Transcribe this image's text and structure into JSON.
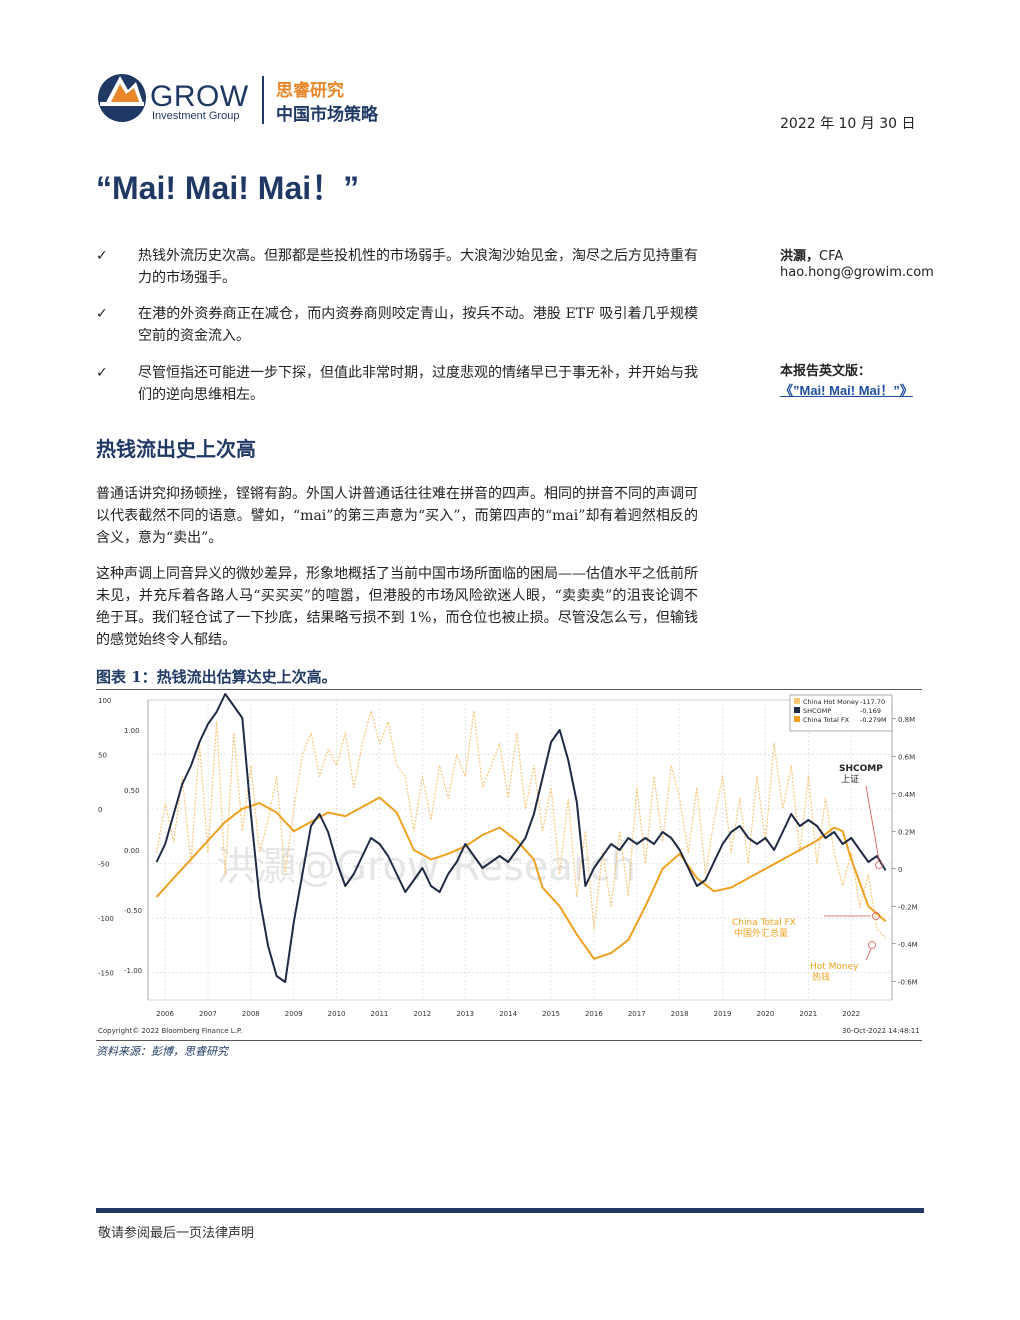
{
  "header": {
    "logo_word": "GROW",
    "logo_sub": "Investment Group",
    "brand_cn": "思睿研究",
    "brand_sub": "中国市场策略",
    "date": "2022 年 10 月 30 日"
  },
  "title": "“Mai! Mai! Mai！”",
  "bullets": [
    {
      "mark": "✓",
      "text": "热钱外流历史次高。但那都是些投机性的市场弱手。大浪淘沙始见金，淘尽之后方见持重有力的市场强手。"
    },
    {
      "mark": "✓",
      "text": "在港的外资券商正在减仓，而内资券商则咬定青山，按兵不动。港股 ETF 吸引着几乎规模空前的资金流入。"
    },
    {
      "mark": "✓",
      "text": "尽管恒指还可能进一步下探，但值此非常时期，过度悲观的情绪早已于事无补，并开始与我们的逆向思维相左。"
    }
  ],
  "author": {
    "name": "洪灝，",
    "cfa": "CFA",
    "email": "hao.hong@growim.com",
    "english_label": "本报告英文版：",
    "english_link": "《”Mai! Mai! Mai！”》"
  },
  "section_heading": "热钱流出史上次高",
  "paragraphs": [
    "普通话讲究抑扬顿挫，铿锵有韵。外国人讲普通话往往难在拼音的四声。相同的拼音不同的声调可以代表截然不同的语意。譬如，“mai”的第三声意为“买入”，而第四声的“mai”却有着迥然相反的含义，意为“卖出”。",
    "这种声调上同音异义的微妙差异，形象地概括了当前中国市场所面临的困局——估值水平之低前所未见，并充斥着各路人马“买买买”的喧嚣，但港股的市场风险欲迷人眼，“卖卖卖”的沮丧论调不绝于耳。我们轻仓试了一下抄底，结果略亏损不到 1%，而仓位也被止损。尽管没怎么亏，但输钱的感觉始终令人郁结。"
  ],
  "figure": {
    "title": "图表 1：热钱流出估算达史上次高。",
    "source": "资料来源：彭博，思睿研究",
    "copyright": "Copyright© 2022 Bloomberg Finance L.P.",
    "timestamp": "30-Oct-2022 14:48:11",
    "watermark": "洪灝@Grow Research",
    "legend": [
      {
        "name": "China Hot Money",
        "value": "-117.70",
        "color": "#f7c77a"
      },
      {
        "name": "SHCOMP",
        "value": "-0.169",
        "color": "#1f2a44"
      },
      {
        "name": "China Total FX",
        "value": "-0.279M",
        "color": "#f0a020"
      }
    ],
    "annotations": {
      "shcomp_en": "SHCOMP",
      "shcomp_cn": "上证",
      "fx_en": "China Total FX",
      "fx_cn": "中国外汇总量",
      "hot_en": "Hot Money",
      "hot_cn": "热钱"
    }
  },
  "chart_data": {
    "type": "line",
    "x_ticks": [
      "2006",
      "2007",
      "2008",
      "2009",
      "2010",
      "2011",
      "2012",
      "2013",
      "2014",
      "2015",
      "2016",
      "2017",
      "2018",
      "2019",
      "2020",
      "2021",
      "2022"
    ],
    "left_axis_outer": {
      "label": "",
      "ticks": [
        "100",
        "50",
        "0",
        "-50",
        "-100",
        "-150"
      ],
      "range": [
        -175,
        100
      ]
    },
    "left_axis_inner": {
      "label": "",
      "ticks": [
        "1.00",
        "0.50",
        "0.00",
        "-0.50",
        "-1.00"
      ],
      "range": [
        -1.25,
        1.25
      ]
    },
    "right_axis": {
      "label": "",
      "ticks": [
        "0.8M",
        "0.6M",
        "0.4M",
        "0.2M",
        "0",
        "-0.2M",
        "-0.4M",
        "-0.6M"
      ],
      "range": [
        -0.7,
        0.9
      ]
    },
    "grid": true,
    "legend_position": "top-right",
    "series": [
      {
        "name": "China Hot Money",
        "axis": "left_outer",
        "color": "#f7c77a",
        "dashed": true,
        "points": [
          [
            2005.8,
            -40
          ],
          [
            2006.0,
            5
          ],
          [
            2006.2,
            -30
          ],
          [
            2006.4,
            30
          ],
          [
            2006.6,
            -50
          ],
          [
            2006.8,
            60
          ],
          [
            2007.0,
            -40
          ],
          [
            2007.2,
            80
          ],
          [
            2007.4,
            -60
          ],
          [
            2007.6,
            70
          ],
          [
            2007.8,
            -20
          ],
          [
            2008.0,
            40
          ],
          [
            2008.2,
            -40
          ],
          [
            2008.4,
            -10
          ],
          [
            2008.6,
            30
          ],
          [
            2008.8,
            -60
          ],
          [
            2009.0,
            0
          ],
          [
            2009.2,
            50
          ],
          [
            2009.4,
            70
          ],
          [
            2009.6,
            30
          ],
          [
            2009.8,
            55
          ],
          [
            2010.0,
            40
          ],
          [
            2010.2,
            70
          ],
          [
            2010.4,
            20
          ],
          [
            2010.6,
            60
          ],
          [
            2010.8,
            90
          ],
          [
            2011.0,
            60
          ],
          [
            2011.2,
            80
          ],
          [
            2011.4,
            40
          ],
          [
            2011.6,
            30
          ],
          [
            2011.8,
            -20
          ],
          [
            2012.0,
            30
          ],
          [
            2012.2,
            -10
          ],
          [
            2012.4,
            40
          ],
          [
            2012.6,
            10
          ],
          [
            2012.8,
            50
          ],
          [
            2013.0,
            30
          ],
          [
            2013.2,
            90
          ],
          [
            2013.4,
            20
          ],
          [
            2013.6,
            40
          ],
          [
            2013.8,
            60
          ],
          [
            2014.0,
            10
          ],
          [
            2014.2,
            70
          ],
          [
            2014.4,
            0
          ],
          [
            2014.6,
            40
          ],
          [
            2014.8,
            -20
          ],
          [
            2015.0,
            20
          ],
          [
            2015.2,
            -60
          ],
          [
            2015.4,
            10
          ],
          [
            2015.6,
            -80
          ],
          [
            2015.8,
            -20
          ],
          [
            2016.0,
            -110
          ],
          [
            2016.2,
            -40
          ],
          [
            2016.4,
            -90
          ],
          [
            2016.6,
            -20
          ],
          [
            2016.8,
            -80
          ],
          [
            2017.0,
            20
          ],
          [
            2017.2,
            -50
          ],
          [
            2017.4,
            30
          ],
          [
            2017.6,
            -30
          ],
          [
            2017.8,
            40
          ],
          [
            2018.0,
            10
          ],
          [
            2018.2,
            -40
          ],
          [
            2018.4,
            20
          ],
          [
            2018.6,
            -60
          ],
          [
            2018.8,
            -10
          ],
          [
            2019.0,
            30
          ],
          [
            2019.2,
            -40
          ],
          [
            2019.4,
            10
          ],
          [
            2019.6,
            -50
          ],
          [
            2019.8,
            30
          ],
          [
            2020.0,
            -30
          ],
          [
            2020.2,
            60
          ],
          [
            2020.4,
            0
          ],
          [
            2020.6,
            40
          ],
          [
            2020.8,
            -40
          ],
          [
            2021.0,
            30
          ],
          [
            2021.2,
            -50
          ],
          [
            2021.4,
            10
          ],
          [
            2021.6,
            -40
          ],
          [
            2021.8,
            -70
          ],
          [
            2022.0,
            -40
          ],
          [
            2022.2,
            -90
          ],
          [
            2022.4,
            -60
          ],
          [
            2022.6,
            -110
          ],
          [
            2022.8,
            -118
          ]
        ]
      },
      {
        "name": "SHCOMP",
        "axis": "left_inner",
        "color": "#1f2a44",
        "dashed": false,
        "points": [
          [
            2005.8,
            -0.1
          ],
          [
            2006.0,
            0.05
          ],
          [
            2006.2,
            0.3
          ],
          [
            2006.4,
            0.55
          ],
          [
            2006.6,
            0.7
          ],
          [
            2006.8,
            0.9
          ],
          [
            2007.0,
            1.05
          ],
          [
            2007.2,
            1.15
          ],
          [
            2007.4,
            1.3
          ],
          [
            2007.6,
            1.2
          ],
          [
            2007.8,
            1.1
          ],
          [
            2008.0,
            0.3
          ],
          [
            2008.2,
            -0.4
          ],
          [
            2008.4,
            -0.8
          ],
          [
            2008.6,
            -1.05
          ],
          [
            2008.8,
            -1.1
          ],
          [
            2009.0,
            -0.6
          ],
          [
            2009.2,
            -0.2
          ],
          [
            2009.4,
            0.2
          ],
          [
            2009.6,
            0.3
          ],
          [
            2009.8,
            0.15
          ],
          [
            2010.0,
            -0.1
          ],
          [
            2010.2,
            -0.3
          ],
          [
            2010.4,
            -0.2
          ],
          [
            2010.6,
            -0.05
          ],
          [
            2010.8,
            0.1
          ],
          [
            2011.0,
            0.05
          ],
          [
            2011.2,
            -0.05
          ],
          [
            2011.4,
            -0.2
          ],
          [
            2011.6,
            -0.35
          ],
          [
            2011.8,
            -0.25
          ],
          [
            2012.0,
            -0.15
          ],
          [
            2012.2,
            -0.3
          ],
          [
            2012.4,
            -0.35
          ],
          [
            2012.6,
            -0.2
          ],
          [
            2012.8,
            -0.1
          ],
          [
            2013.0,
            0.05
          ],
          [
            2013.2,
            -0.05
          ],
          [
            2013.4,
            -0.15
          ],
          [
            2013.6,
            -0.1
          ],
          [
            2013.8,
            -0.05
          ],
          [
            2014.0,
            -0.1
          ],
          [
            2014.2,
            0.0
          ],
          [
            2014.4,
            0.1
          ],
          [
            2014.6,
            0.3
          ],
          [
            2014.8,
            0.6
          ],
          [
            2015.0,
            0.9
          ],
          [
            2015.2,
            1.0
          ],
          [
            2015.4,
            0.75
          ],
          [
            2015.6,
            0.4
          ],
          [
            2015.8,
            -0.3
          ],
          [
            2016.0,
            -0.15
          ],
          [
            2016.2,
            -0.05
          ],
          [
            2016.4,
            0.05
          ],
          [
            2016.6,
            0.0
          ],
          [
            2016.8,
            0.1
          ],
          [
            2017.0,
            0.05
          ],
          [
            2017.2,
            0.1
          ],
          [
            2017.4,
            0.05
          ],
          [
            2017.6,
            0.15
          ],
          [
            2017.8,
            0.1
          ],
          [
            2018.0,
            0.0
          ],
          [
            2018.2,
            -0.15
          ],
          [
            2018.4,
            -0.3
          ],
          [
            2018.6,
            -0.25
          ],
          [
            2018.8,
            -0.1
          ],
          [
            2019.0,
            0.05
          ],
          [
            2019.2,
            0.15
          ],
          [
            2019.4,
            0.2
          ],
          [
            2019.6,
            0.1
          ],
          [
            2019.8,
            0.05
          ],
          [
            2020.0,
            0.1
          ],
          [
            2020.2,
            0.0
          ],
          [
            2020.4,
            0.15
          ],
          [
            2020.6,
            0.3
          ],
          [
            2020.8,
            0.2
          ],
          [
            2021.0,
            0.25
          ],
          [
            2021.2,
            0.2
          ],
          [
            2021.4,
            0.1
          ],
          [
            2021.6,
            0.15
          ],
          [
            2021.8,
            0.05
          ],
          [
            2022.0,
            0.1
          ],
          [
            2022.2,
            0.0
          ],
          [
            2022.4,
            -0.1
          ],
          [
            2022.6,
            -0.05
          ],
          [
            2022.8,
            -0.17
          ]
        ]
      },
      {
        "name": "China Total FX",
        "axis": "right",
        "color": "#f0a020",
        "dashed": false,
        "points": [
          [
            2005.8,
            -0.15
          ],
          [
            2006.2,
            -0.05
          ],
          [
            2006.6,
            0.05
          ],
          [
            2007.0,
            0.15
          ],
          [
            2007.4,
            0.25
          ],
          [
            2007.8,
            0.32
          ],
          [
            2008.2,
            0.35
          ],
          [
            2008.6,
            0.3
          ],
          [
            2009.0,
            0.2
          ],
          [
            2009.4,
            0.25
          ],
          [
            2009.8,
            0.3
          ],
          [
            2010.2,
            0.28
          ],
          [
            2010.6,
            0.33
          ],
          [
            2011.0,
            0.38
          ],
          [
            2011.4,
            0.3
          ],
          [
            2011.8,
            0.1
          ],
          [
            2012.2,
            0.05
          ],
          [
            2012.6,
            0.08
          ],
          [
            2013.0,
            0.12
          ],
          [
            2013.4,
            0.18
          ],
          [
            2013.8,
            0.22
          ],
          [
            2014.2,
            0.15
          ],
          [
            2014.6,
            0.05
          ],
          [
            2014.8,
            -0.1
          ],
          [
            2015.2,
            -0.2
          ],
          [
            2015.6,
            -0.35
          ],
          [
            2016.0,
            -0.48
          ],
          [
            2016.4,
            -0.45
          ],
          [
            2016.8,
            -0.38
          ],
          [
            2017.2,
            -0.2
          ],
          [
            2017.6,
            0.0
          ],
          [
            2018.0,
            0.08
          ],
          [
            2018.4,
            -0.05
          ],
          [
            2018.8,
            -0.12
          ],
          [
            2019.2,
            -0.1
          ],
          [
            2019.6,
            -0.05
          ],
          [
            2020.0,
            0.0
          ],
          [
            2020.4,
            0.05
          ],
          [
            2020.8,
            0.1
          ],
          [
            2021.2,
            0.15
          ],
          [
            2021.6,
            0.22
          ],
          [
            2021.8,
            0.2
          ],
          [
            2022.0,
            0.05
          ],
          [
            2022.4,
            -0.2
          ],
          [
            2022.8,
            -0.28
          ]
        ]
      }
    ]
  },
  "footer": {
    "disclaimer": "敬请参阅最后一页法律声明"
  }
}
